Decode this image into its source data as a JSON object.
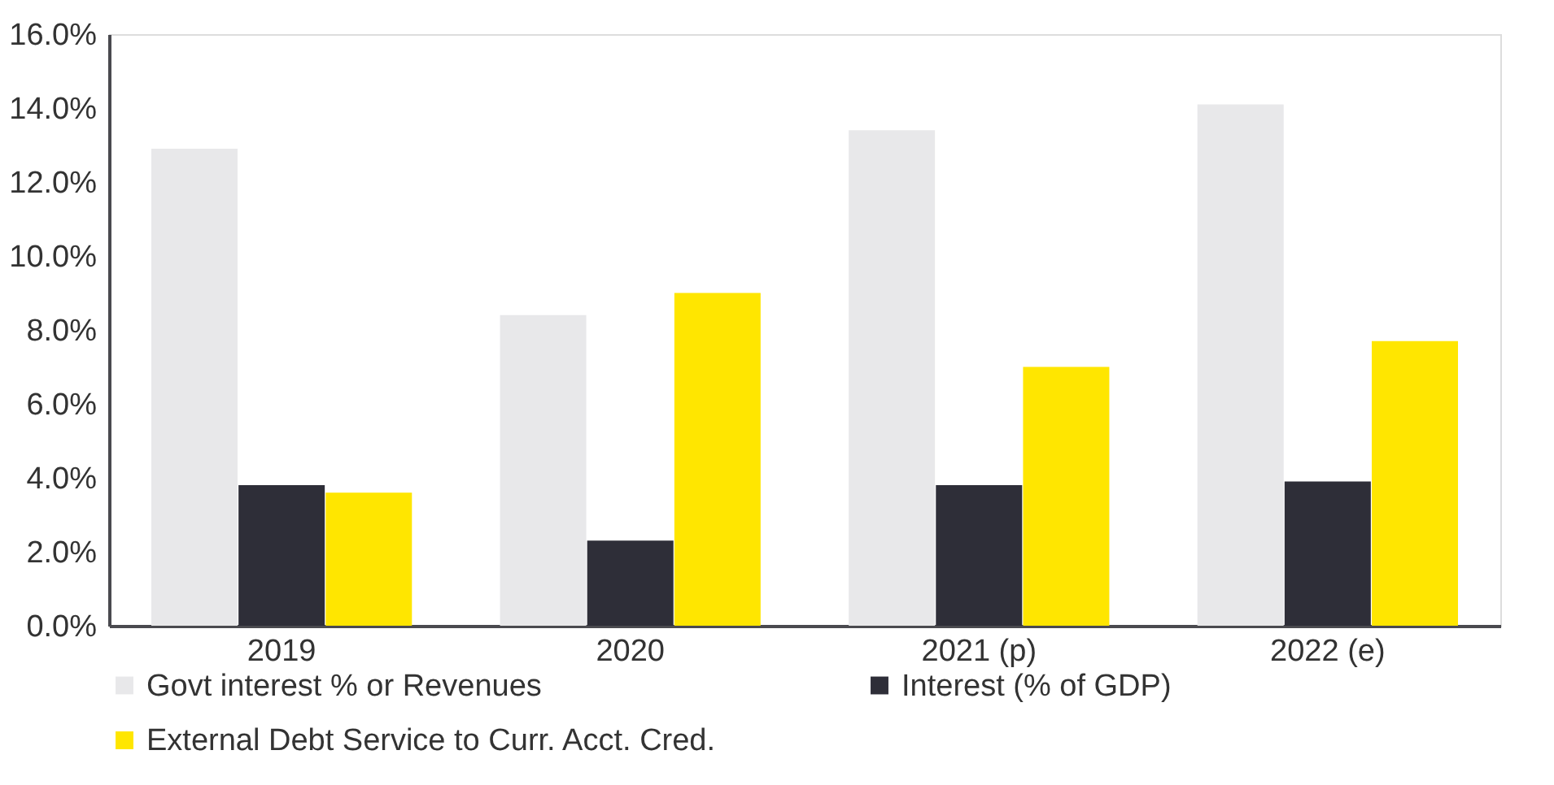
{
  "chart_data": {
    "type": "bar",
    "categories": [
      "2019",
      "2020",
      "2021 (p)",
      "2022 (e)"
    ],
    "series": [
      {
        "name": "Govt interest % or Revenues",
        "color": "#e8e8ea",
        "values": [
          12.9,
          8.4,
          13.4,
          14.1
        ]
      },
      {
        "name": "Interest (% of GDP)",
        "color": "#2e2e38",
        "values": [
          3.8,
          2.3,
          3.8,
          3.9
        ]
      },
      {
        "name": "External Debt Service to Curr. Acct. Cred.",
        "color": "#ffe600",
        "values": [
          3.6,
          9.0,
          7.0,
          7.7
        ]
      }
    ],
    "ylim": [
      0,
      16
    ],
    "yticks": [
      {
        "value": 0,
        "label": "0.0%"
      },
      {
        "value": 2,
        "label": "2.0%"
      },
      {
        "value": 4,
        "label": "4.0%"
      },
      {
        "value": 6,
        "label": "6.0%"
      },
      {
        "value": 8,
        "label": "8.0%"
      },
      {
        "value": 10,
        "label": "10.0%"
      },
      {
        "value": 12,
        "label": "12.0%"
      },
      {
        "value": 14,
        "label": "14.0%"
      },
      {
        "value": 16,
        "label": "16.0%"
      }
    ],
    "grid": false,
    "legend": "bottom"
  }
}
